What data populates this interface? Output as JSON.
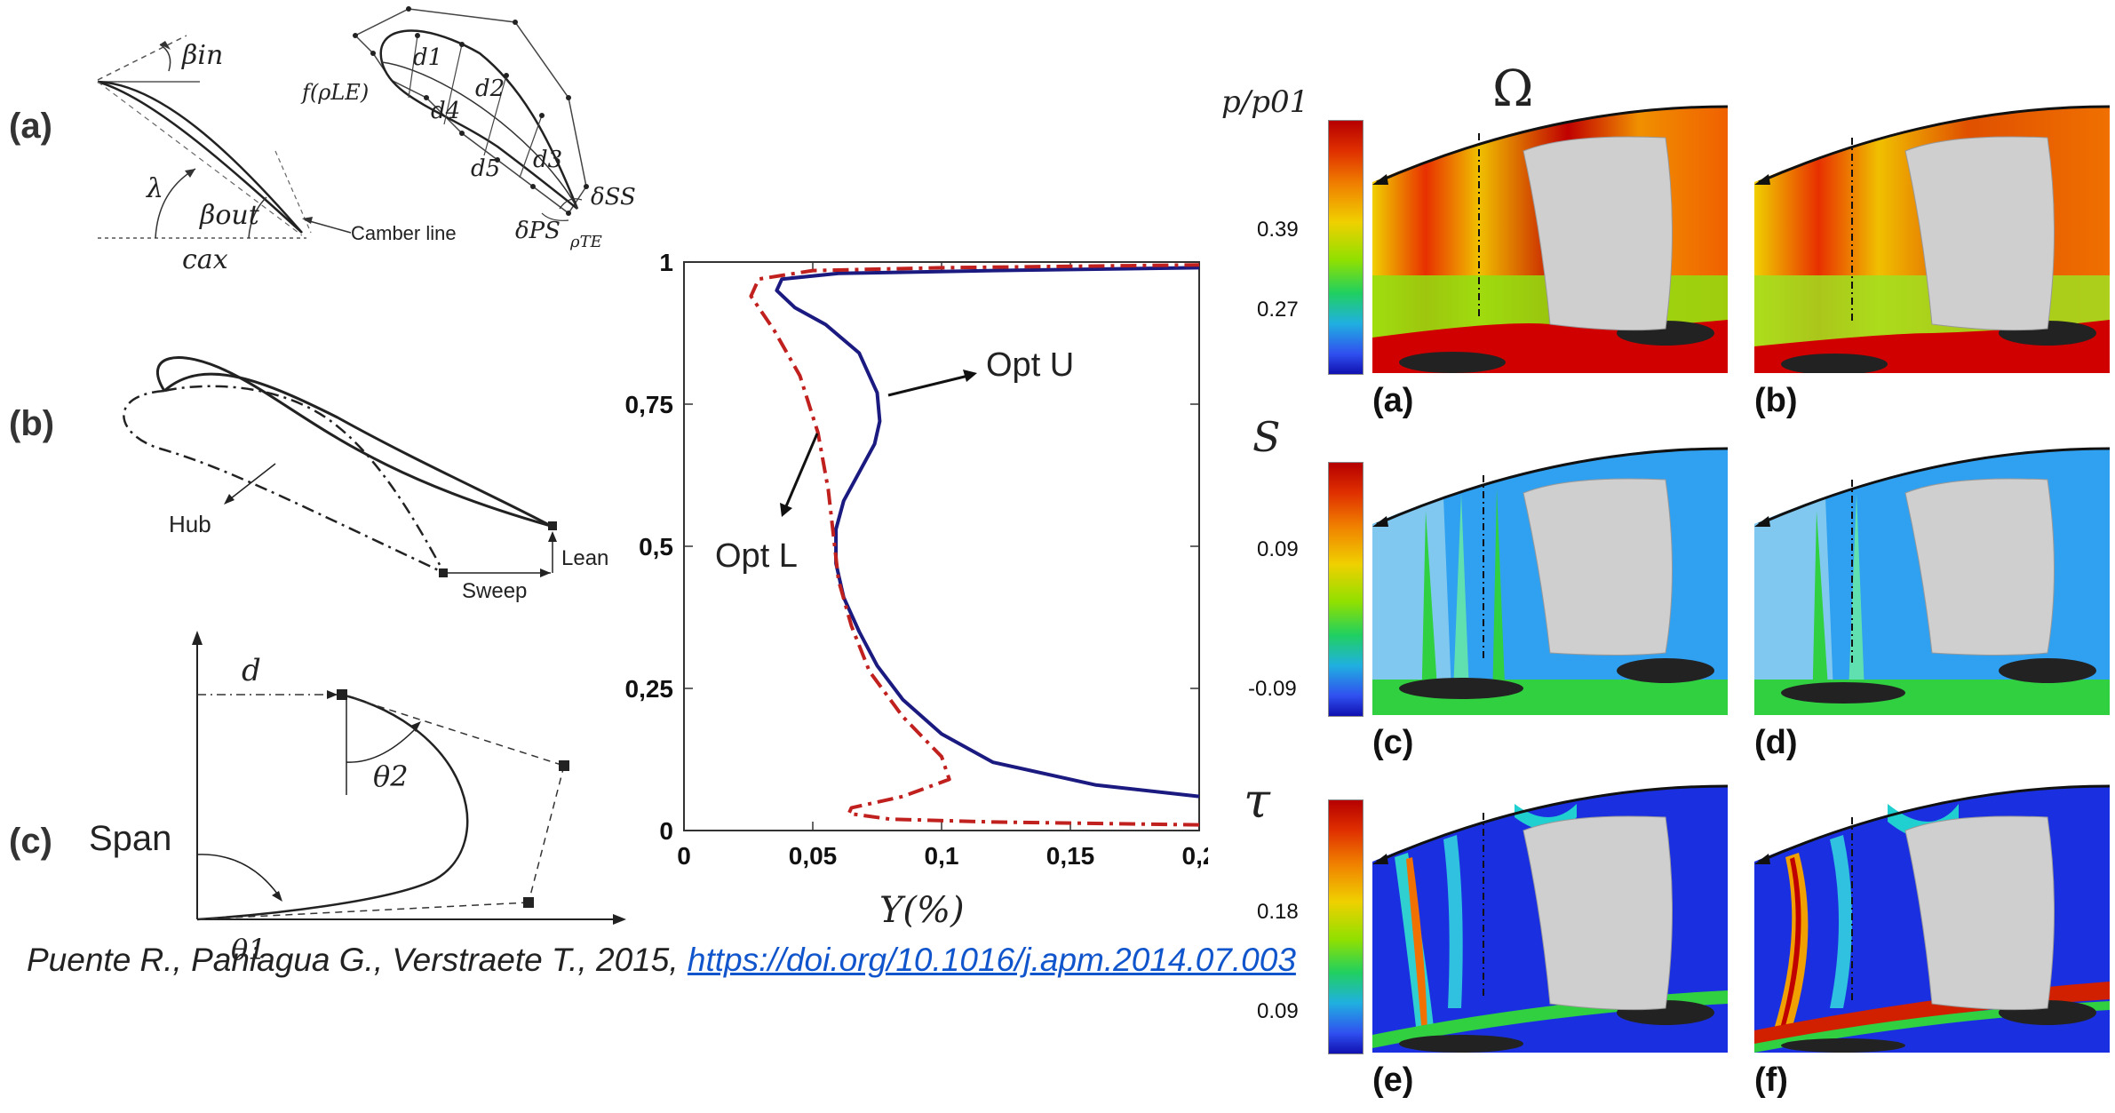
{
  "left": {
    "labels": {
      "a": "(a)",
      "b": "(b)",
      "c": "(c)"
    },
    "a": {
      "beta_in": "βin",
      "beta_out": "βout",
      "lambda": "λ",
      "c_ax": "cax",
      "camber_line": "Camber line",
      "f_rho_le": "f(ρLE)",
      "d1": "d1",
      "d2": "d2",
      "d3": "d3",
      "d4": "d4",
      "d5": "d5",
      "delta_ss": "δSS",
      "delta_ps": "δPS",
      "rho_te": "ρTE"
    },
    "b": {
      "hub": "Hub",
      "lean": "Lean",
      "sweep": "Sweep"
    },
    "c": {
      "span": "Span",
      "d": "d",
      "theta1": "θ1",
      "theta2": "θ2"
    }
  },
  "chart_data": {
    "type": "line",
    "xlabel": "Y(%)",
    "ylabel": "",
    "xlim": [
      0,
      0.2
    ],
    "ylim": [
      0,
      1
    ],
    "x_ticks": [
      "0",
      "0,05",
      "0,1",
      "0,15",
      "0,2"
    ],
    "y_ticks": [
      "0",
      "0,25",
      "0,5",
      "0,75",
      "1"
    ],
    "annotations": [
      "Opt U",
      "Opt L"
    ],
    "series": [
      {
        "name": "Opt U",
        "color": "#1a1a80",
        "style": "solid",
        "x": [
          0.2,
          0.16,
          0.12,
          0.1,
          0.085,
          0.075,
          0.068,
          0.062,
          0.059,
          0.059,
          0.062,
          0.068,
          0.074,
          0.076,
          0.075,
          0.068,
          0.055,
          0.043,
          0.036,
          0.038,
          0.06,
          0.12,
          0.2
        ],
        "y": [
          0.06,
          0.08,
          0.12,
          0.17,
          0.23,
          0.29,
          0.35,
          0.41,
          0.47,
          0.53,
          0.58,
          0.63,
          0.68,
          0.72,
          0.77,
          0.84,
          0.89,
          0.92,
          0.95,
          0.97,
          0.98,
          0.985,
          0.99
        ]
      },
      {
        "name": "Opt L",
        "color": "#c0201e",
        "style": "dashdot",
        "x": [
          0.2,
          0.12,
          0.08,
          0.064,
          0.065,
          0.085,
          0.103,
          0.1,
          0.085,
          0.072,
          0.065,
          0.06,
          0.058,
          0.056,
          0.052,
          0.045,
          0.035,
          0.026,
          0.029,
          0.05,
          0.1,
          0.2
        ],
        "y": [
          0.01,
          0.015,
          0.02,
          0.03,
          0.04,
          0.06,
          0.09,
          0.13,
          0.2,
          0.28,
          0.36,
          0.44,
          0.52,
          0.6,
          0.7,
          0.8,
          0.88,
          0.94,
          0.97,
          0.985,
          0.99,
          0.995
        ]
      }
    ]
  },
  "right": {
    "omega": "Ω",
    "row_symbols": {
      "p": "p/p01",
      "s": "S",
      "tau": "τ"
    },
    "colorbar_ticks": {
      "p": [
        "0.39",
        "0.27"
      ],
      "s": [
        "0.09",
        "-0.09"
      ],
      "tau": [
        "0.18",
        "0.09"
      ]
    },
    "panel_labels": [
      "(a)",
      "(b)",
      "(c)",
      "(d)",
      "(e)",
      "(f)"
    ]
  },
  "citation": {
    "text": "Puente R., Paniagua G., Verstraete T., 2015, ",
    "link": "https://doi.org/10.1016/j.apm.2014.07.003"
  }
}
